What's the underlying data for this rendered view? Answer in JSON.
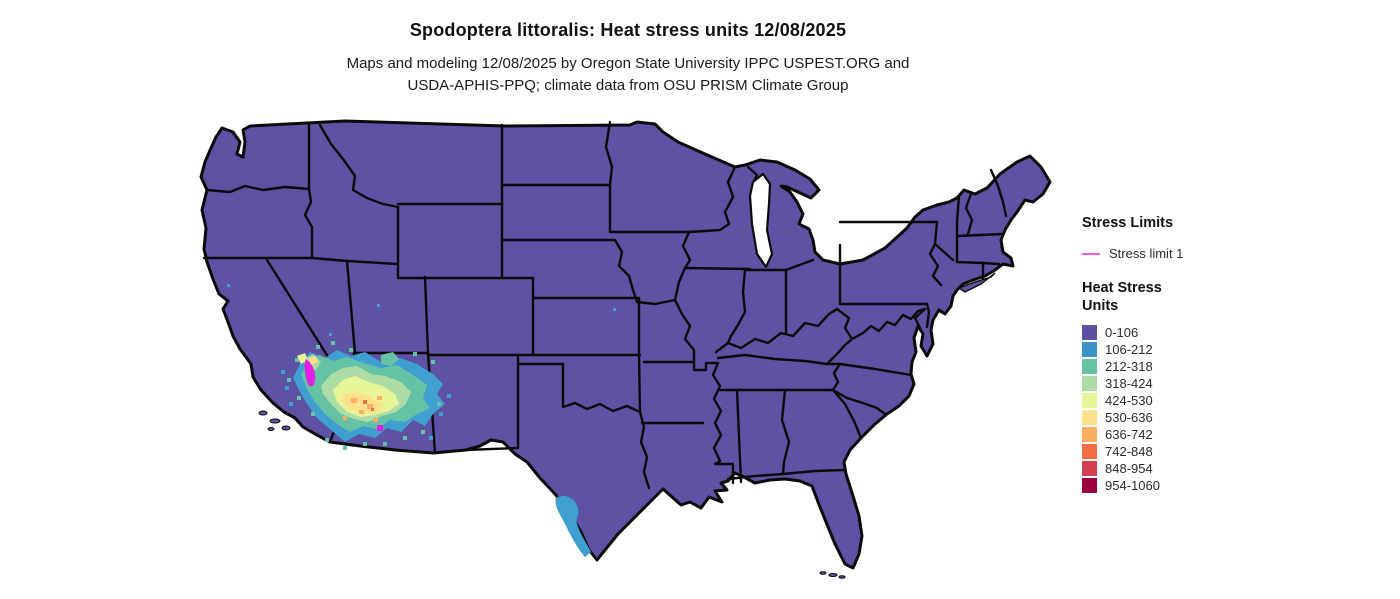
{
  "header": {
    "title": "Spodoptera littoralis: Heat stress units 12/08/2025",
    "subtitle_line1": "Maps and modeling 12/08/2025 by Oregon State University IPPC USPEST.ORG and",
    "subtitle_line2": "USDA-APHIS-PPQ; climate data from OSU PRISM Climate Group"
  },
  "legend": {
    "stress_limits_title": "Stress Limits",
    "stress_limit_items": [
      {
        "label": "Stress limit 1",
        "color": "#f858ea"
      }
    ],
    "heat_stress_title_line1": "Heat Stress",
    "heat_stress_title_line2": "Units",
    "classes": [
      {
        "label": "0-106",
        "color": "#5e50a1"
      },
      {
        "label": "106-212",
        "color": "#3a92c5"
      },
      {
        "label": "212-318",
        "color": "#66c2a5"
      },
      {
        "label": "318-424",
        "color": "#abdda4"
      },
      {
        "label": "424-530",
        "color": "#e6f598"
      },
      {
        "label": "530-636",
        "color": "#fee08b"
      },
      {
        "label": "636-742",
        "color": "#fdae61"
      },
      {
        "label": "742-848",
        "color": "#f46d43"
      },
      {
        "label": "848-954",
        "color": "#d53e4f"
      },
      {
        "label": "954-1060",
        "color": "#9e0142"
      }
    ]
  },
  "map": {
    "background_color": "#ffffff",
    "land_color": "#5d52a3",
    "border_color": "#0b0b0b",
    "lake_color": "#ffffff",
    "stress_line_color": "#e21fe2",
    "hotspot_colors": {
      "blue": "#3f9fd0",
      "teal": "#66c2a5",
      "green": "#abdda4",
      "pale": "#e6f598",
      "cream": "#fee08b",
      "orange": "#fdae61",
      "deep_orange": "#f46d43"
    }
  }
}
